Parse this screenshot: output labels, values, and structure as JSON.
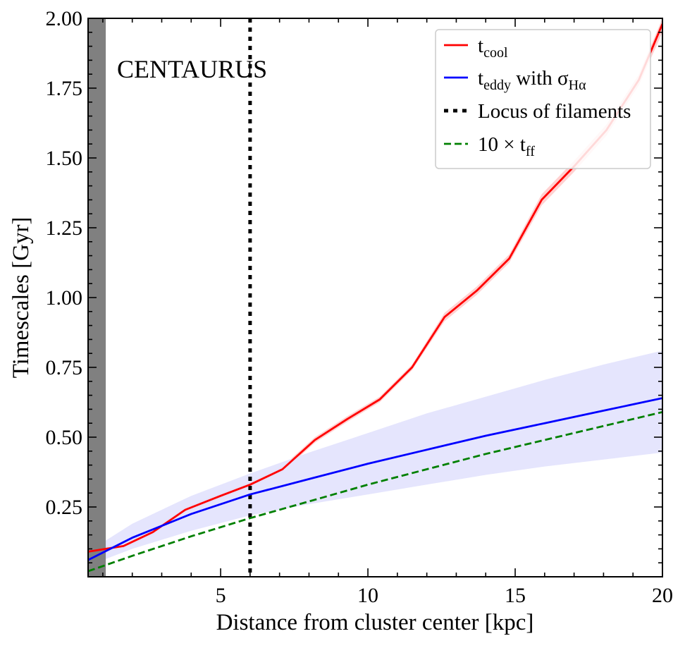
{
  "chart_data": {
    "type": "line",
    "title": "",
    "annotation": "CENTAURUS",
    "xlabel": "Distance from cluster center [kpc]",
    "ylabel": "Timescales [Gyr]",
    "xlim": [
      0.5,
      20
    ],
    "ylim": [
      0.0,
      2.0
    ],
    "x_ticks": [
      5,
      10,
      15,
      20
    ],
    "x_tick_labels": [
      "5",
      "10",
      "15",
      "20"
    ],
    "y_ticks": [
      0.25,
      0.5,
      0.75,
      1.0,
      1.25,
      1.5,
      1.75,
      2.0
    ],
    "y_tick_labels": [
      "0.25",
      "0.50",
      "0.75",
      "1.00",
      "1.25",
      "1.50",
      "1.75",
      "2.00"
    ],
    "grid": false,
    "legend_position": "top-right",
    "shaded_region": {
      "x_from": 0.5,
      "x_to": 1.1,
      "color": "#808080"
    },
    "vertical_line": {
      "x": 6.0,
      "label": "Locus of filaments",
      "style": "dotted",
      "color": "#000000"
    },
    "series": [
      {
        "name": "t_cool",
        "legend_main": "t",
        "legend_sub": "cool",
        "legend_suffix": "",
        "color": "#ff0000",
        "style": "solid",
        "band_color": "#ffcccc",
        "x": [
          0.5,
          1.7,
          2.7,
          3.8,
          5.0,
          6.0,
          7.1,
          8.2,
          9.3,
          10.4,
          11.5,
          12.6,
          13.7,
          14.8,
          15.9,
          17.0,
          18.1,
          19.2,
          20.0
        ],
        "y": [
          0.09,
          0.11,
          0.16,
          0.24,
          0.29,
          0.33,
          0.385,
          0.49,
          0.565,
          0.635,
          0.75,
          0.93,
          1.025,
          1.14,
          1.35,
          1.47,
          1.6,
          1.78,
          1.98
        ],
        "band_lower": [
          0.08,
          0.1,
          0.15,
          0.23,
          0.28,
          0.32,
          0.375,
          0.48,
          0.555,
          0.625,
          0.74,
          0.915,
          1.01,
          1.125,
          1.33,
          1.45,
          1.58,
          1.76,
          1.95
        ],
        "band_upper": [
          0.1,
          0.12,
          0.17,
          0.25,
          0.3,
          0.34,
          0.395,
          0.5,
          0.575,
          0.645,
          0.76,
          0.945,
          1.04,
          1.155,
          1.37,
          1.49,
          1.62,
          1.8,
          2.0
        ]
      },
      {
        "name": "t_eddy with σ_Hα",
        "legend_main": "t",
        "legend_sub": "eddy",
        "legend_suffix": " with σ",
        "legend_suffix_sub": "Hα",
        "color": "#0000ff",
        "style": "solid",
        "band_color": "#e2e2fd",
        "x": [
          0.5,
          2.0,
          4.0,
          6.0,
          8.0,
          10.0,
          12.0,
          14.0,
          16.0,
          18.0,
          20.0
        ],
        "y": [
          0.06,
          0.14,
          0.225,
          0.295,
          0.35,
          0.405,
          0.455,
          0.505,
          0.55,
          0.595,
          0.64
        ],
        "band_lower": [
          0.04,
          0.1,
          0.165,
          0.22,
          0.26,
          0.295,
          0.33,
          0.365,
          0.395,
          0.42,
          0.445
        ],
        "band_upper": [
          0.09,
          0.19,
          0.29,
          0.37,
          0.445,
          0.515,
          0.585,
          0.645,
          0.705,
          0.76,
          0.81
        ]
      },
      {
        "name": "10 × t_ff",
        "legend_main": "10 × t",
        "legend_sub": "ff",
        "legend_suffix": "",
        "color": "#008000",
        "style": "dashed",
        "x": [
          0.5,
          2.0,
          4.0,
          6.0,
          8.0,
          10.0,
          12.0,
          14.0,
          16.0,
          18.0,
          20.0
        ],
        "y": [
          0.02,
          0.075,
          0.145,
          0.21,
          0.27,
          0.33,
          0.385,
          0.44,
          0.49,
          0.54,
          0.59
        ]
      }
    ]
  }
}
